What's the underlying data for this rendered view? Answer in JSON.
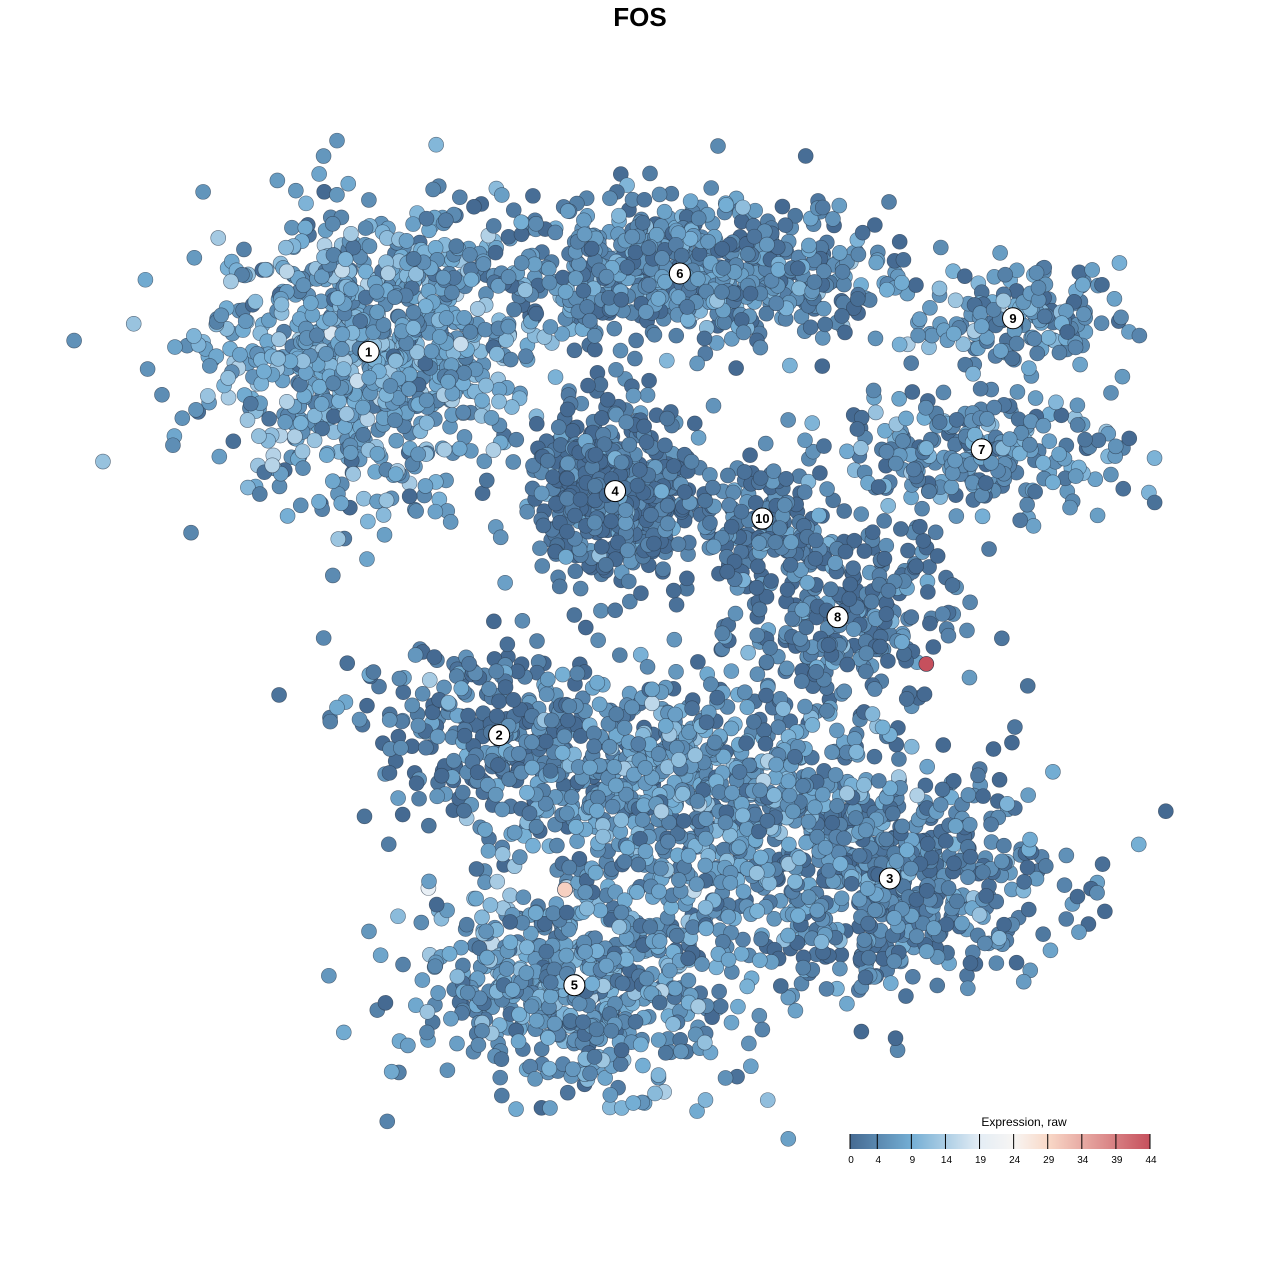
{
  "chart_data": {
    "type": "scatter",
    "title": "FOS",
    "xlabel": "",
    "ylabel": "",
    "xlim": [
      -45,
      45
    ],
    "ylim": [
      -45,
      45
    ],
    "grid": false,
    "legend": {
      "title": "Expression, raw",
      "placement": "bottom-right",
      "ticks": [
        0,
        4,
        9,
        14,
        19,
        24,
        29,
        34,
        39,
        44
      ],
      "colorscale": [
        {
          "value": 0,
          "color": "#456a92"
        },
        {
          "value": 9,
          "color": "#74aed4"
        },
        {
          "value": 19,
          "color": "#e4edf5"
        },
        {
          "value": 24,
          "color": "#f7f5f3"
        },
        {
          "value": 29,
          "color": "#f9d9c8"
        },
        {
          "value": 44,
          "color": "#c6505d"
        }
      ]
    },
    "clusters": [
      {
        "label": "1",
        "x": -27.9,
        "y": 28.1,
        "sx": 7.5,
        "sy": 7,
        "n": 900,
        "mean_expr": 7
      },
      {
        "label": "6",
        "x": 1.9,
        "y": 35.8,
        "sx": 10,
        "sy": 3.5,
        "n": 700,
        "mean_expr": 4
      },
      {
        "label": "4",
        "x": -4.3,
        "y": 14.4,
        "sx": 4,
        "sy": 4,
        "n": 500,
        "mean_expr": 1.5
      },
      {
        "label": "10",
        "x": 9.8,
        "y": 11.7,
        "sx": 3,
        "sy": 3.5,
        "n": 150,
        "mean_expr": 2
      },
      {
        "label": "9",
        "x": 33.8,
        "y": 31.4,
        "sx": 5,
        "sy": 2.5,
        "n": 150,
        "mean_expr": 5
      },
      {
        "label": "7",
        "x": 30.8,
        "y": 18.5,
        "sx": 7,
        "sy": 3,
        "n": 250,
        "mean_expr": 5
      },
      {
        "label": "8",
        "x": 17,
        "y": 2,
        "sx": 6,
        "sy": 5,
        "n": 300,
        "mean_expr": 2
      },
      {
        "label": "2",
        "x": -15.4,
        "y": -9.6,
        "sx": 7,
        "sy": 4.5,
        "n": 300,
        "mean_expr": 2
      },
      {
        "label": "3",
        "x": 22,
        "y": -23.7,
        "sx": 8,
        "sy": 5.5,
        "n": 550,
        "mean_expr": 3
      },
      {
        "label": "5",
        "x": -8.2,
        "y": -34.2,
        "sx": 8,
        "sy": 5,
        "n": 600,
        "mean_expr": 6
      },
      {
        "label": "",
        "x": 3,
        "y": -16,
        "sx": 9,
        "sy": 6,
        "n": 700,
        "mean_expr": 6
      }
    ],
    "highlight_points": [
      {
        "x": 25.5,
        "y": -2.6,
        "expr": 44
      },
      {
        "x": -9.1,
        "y": -24.8,
        "expr": 30
      }
    ]
  }
}
